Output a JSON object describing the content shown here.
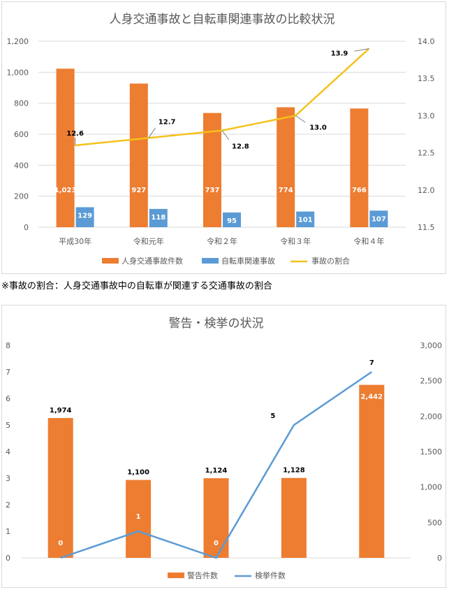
{
  "note": "※事故の割合：人身交通事故中の自転車が関連する交通事故の割合",
  "colors": {
    "orange": "#ed7d31",
    "blue": "#5b9bd5",
    "yellow": "#f5c11b",
    "grid": "#d9d9d9",
    "axis_text": "#595959"
  },
  "chart_data": [
    {
      "type": "bar",
      "title": "人身交通事故と自転車関連事故の比較状況",
      "categories": [
        "平成30年",
        "令和元年",
        "令和２年",
        "令和３年",
        "令和４年"
      ],
      "ylim_left": [
        0,
        1200
      ],
      "yticks_left": [
        "0",
        "200",
        "400",
        "600",
        "800",
        "1,000",
        "1,200"
      ],
      "ylim_right": [
        11.5,
        14.0
      ],
      "yticks_right": [
        "11.5",
        "12.0",
        "12.5",
        "13.0",
        "13.5",
        "14.0"
      ],
      "grid": true,
      "legend": "bottom",
      "series": [
        {
          "name": "人身交通事故件数",
          "type": "bar",
          "axis": "left",
          "values": [
            1023,
            927,
            737,
            774,
            766
          ],
          "labels": [
            "1,023",
            "927",
            "737",
            "774",
            "766"
          ]
        },
        {
          "name": "自転車関連事故",
          "type": "bar",
          "axis": "left",
          "values": [
            129,
            118,
            95,
            101,
            107
          ],
          "labels": [
            "129",
            "118",
            "95",
            "101",
            "107"
          ]
        },
        {
          "name": "事故の割合",
          "type": "line",
          "axis": "right",
          "values": [
            12.6,
            12.7,
            12.8,
            13.0,
            13.9
          ],
          "labels": [
            "12.6",
            "12.7",
            "12.8",
            "13.0",
            "13.9"
          ]
        }
      ]
    },
    {
      "type": "bar",
      "title": "警告・検挙の状況",
      "categories": [
        "",
        "",
        "",
        "",
        ""
      ],
      "ylim_left": [
        0,
        8
      ],
      "yticks_left": [
        "0",
        "1",
        "2",
        "3",
        "4",
        "5",
        "6",
        "7",
        "8"
      ],
      "ylim_right": [
        0,
        3000
      ],
      "yticks_right": [
        "0",
        "500",
        "1,000",
        "1,500",
        "2,000",
        "2,500",
        "3,000"
      ],
      "grid": false,
      "legend": "bottom",
      "series": [
        {
          "name": "警告件数",
          "type": "bar",
          "axis": "right",
          "values": [
            1974,
            1100,
            1124,
            1128,
            2442
          ],
          "labels": [
            "1,974",
            "1,100",
            "1,124",
            "1,128",
            "2,442"
          ]
        },
        {
          "name": "検挙件数",
          "type": "line",
          "axis": "left",
          "values": [
            0,
            1,
            0,
            5,
            7
          ],
          "labels": [
            "0",
            "1",
            "0",
            "5",
            "7"
          ]
        }
      ]
    }
  ]
}
